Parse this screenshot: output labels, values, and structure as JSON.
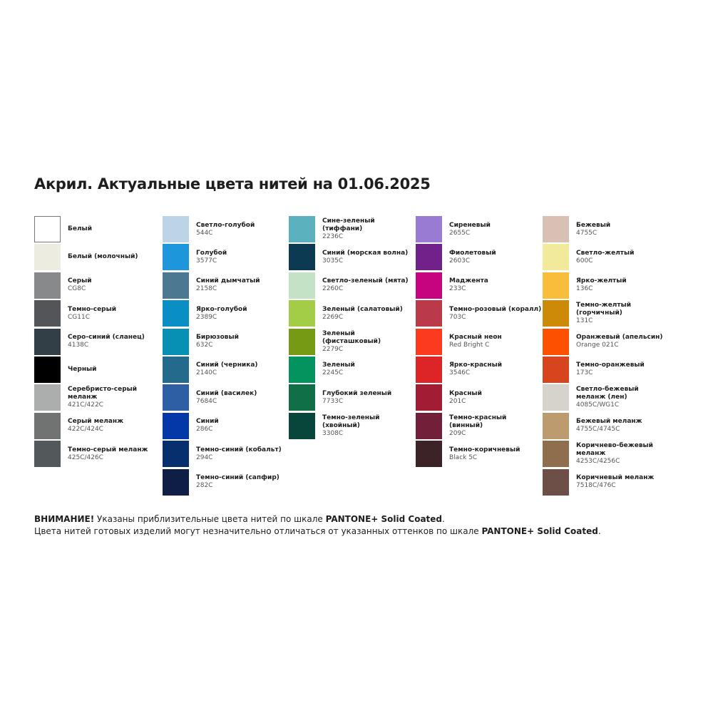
{
  "title": "Акрил. Актуальные цвета нитей на 01.06.2025",
  "columns": [
    [
      {
        "name": "Белый",
        "code": "",
        "color": "#ffffff"
      },
      {
        "name": "Белый (молочный)",
        "code": "",
        "color": "#ecece1"
      },
      {
        "name": "Серый",
        "code": "CG8C",
        "color": "#88898b"
      },
      {
        "name": "Темно-серый",
        "code": "CG11C",
        "color": "#535559"
      },
      {
        "name": "Серо-синий (сланец)",
        "code": "4138C",
        "color": "#333f47"
      },
      {
        "name": "Черный",
        "code": "",
        "color": "#000000"
      },
      {
        "name": "Серебристо-серый меланж",
        "code": "421C/422C",
        "color": "#acaeae"
      },
      {
        "name": "Серый меланж",
        "code": "422C/424C",
        "color": "#717372"
      },
      {
        "name": "Темно-серый меланж",
        "code": "425C/426C",
        "color": "#53585b"
      }
    ],
    [
      {
        "name": "Светло-голубой",
        "code": "544C",
        "color": "#bcd4e6"
      },
      {
        "name": "Голубой",
        "code": "3577C",
        "color": "#1e96dc"
      },
      {
        "name": "Синий дымчатый",
        "code": "2158C",
        "color": "#4c7891"
      },
      {
        "name": "Ярко-голубой",
        "code": "2389C",
        "color": "#0a8fc4"
      },
      {
        "name": "Бирюзовый",
        "code": "632C",
        "color": "#0790b4"
      },
      {
        "name": "Синий (черника)",
        "code": "2140C",
        "color": "#246a8d"
      },
      {
        "name": "Синий (василек)",
        "code": "7684C",
        "color": "#2e5ea4"
      },
      {
        "name": "Синий",
        "code": "286C",
        "color": "#0437a8"
      },
      {
        "name": "Темно-синий (кобальт)",
        "code": "294C",
        "color": "#082f6d"
      },
      {
        "name": "Темно-синий (сапфир)",
        "code": "282C",
        "color": "#0f1e45"
      }
    ],
    [
      {
        "name": "Сине-зеленый (тиффани)",
        "code": "2236C",
        "color": "#5bb1bd"
      },
      {
        "name": "Синий (морская волна)",
        "code": "3035C",
        "color": "#0b3a52"
      },
      {
        "name": "Светло-зеленый (мята)",
        "code": "2260C",
        "color": "#c3e2c6"
      },
      {
        "name": "Зеленый (салатовый)",
        "code": "2269C",
        "color": "#a3cd46"
      },
      {
        "name": "Зеленый (фисташковый)",
        "code": "2279C",
        "color": "#769a14"
      },
      {
        "name": "Зеленый",
        "code": "2245C",
        "color": "#03935e"
      },
      {
        "name": "Глубокий зеленый",
        "code": "7733C",
        "color": "#106f46"
      },
      {
        "name": "Темно-зеленый (хвойный)",
        "code": "3308C",
        "color": "#08453a"
      }
    ],
    [
      {
        "name": "Сиреневый",
        "code": "2655C",
        "color": "#9a7bd3"
      },
      {
        "name": "Фиолетовый",
        "code": "2603C",
        "color": "#70218a"
      },
      {
        "name": "Маджента",
        "code": "233C",
        "color": "#c7047f"
      },
      {
        "name": "Темно-розовый (коралл)",
        "code": "703C",
        "color": "#bb3a4a"
      },
      {
        "name": "Красный неон",
        "code": "Red Bright C",
        "color": "#fb3a20"
      },
      {
        "name": "Ярко-красный",
        "code": "3546C",
        "color": "#dd2527"
      },
      {
        "name": "Красный",
        "code": "201C",
        "color": "#a21c33"
      },
      {
        "name": "Темно-красный (винный)",
        "code": "209C",
        "color": "#72203a"
      },
      {
        "name": "Темно-коричневый",
        "code": "Black 5C",
        "color": "#3c2328"
      }
    ],
    [
      {
        "name": "Бежевый",
        "code": "4755C",
        "color": "#d8c0b4"
      },
      {
        "name": "Светло-желтый",
        "code": "600C",
        "color": "#f1ea9a"
      },
      {
        "name": "Ярко-желтый",
        "code": "136C",
        "color": "#f8bd3b"
      },
      {
        "name": "Темно-желтый (горчичный)",
        "code": "131C",
        "color": "#cd8a09"
      },
      {
        "name": "Оранжевый (апельсин)",
        "code": "Orange 021C",
        "color": "#fe5001"
      },
      {
        "name": "Темно-оранжевый",
        "code": "173C",
        "color": "#d6451e"
      },
      {
        "name": "Светло-бежевый меланж (лен)",
        "code": "4085C/WG1C",
        "color": "#d6d3cc"
      },
      {
        "name": "Бежевый меланж",
        "code": "4755C/4745C",
        "color": "#bc9c6e"
      },
      {
        "name": "Коричнево-бежевый меланж",
        "code": "4253C/4256C",
        "color": "#8e6e4d"
      },
      {
        "name": "Коричневый меланж",
        "code": "7518C/476C",
        "color": "#6e4f47"
      }
    ]
  ],
  "note": {
    "line1_bold": "ВНИМАНИЕ!",
    "line1_text": " Указаны приблизительные цвета нитей по шкале ",
    "line1_scale": "PANTONE+ Solid Coated",
    "line1_end": ".",
    "line2_text": "Цвета нитей готовых изделий могут незначительно отличаться от указанных оттенков по шкале ",
    "line2_scale": "PANTONE+ Solid Coated",
    "line2_end": "."
  }
}
